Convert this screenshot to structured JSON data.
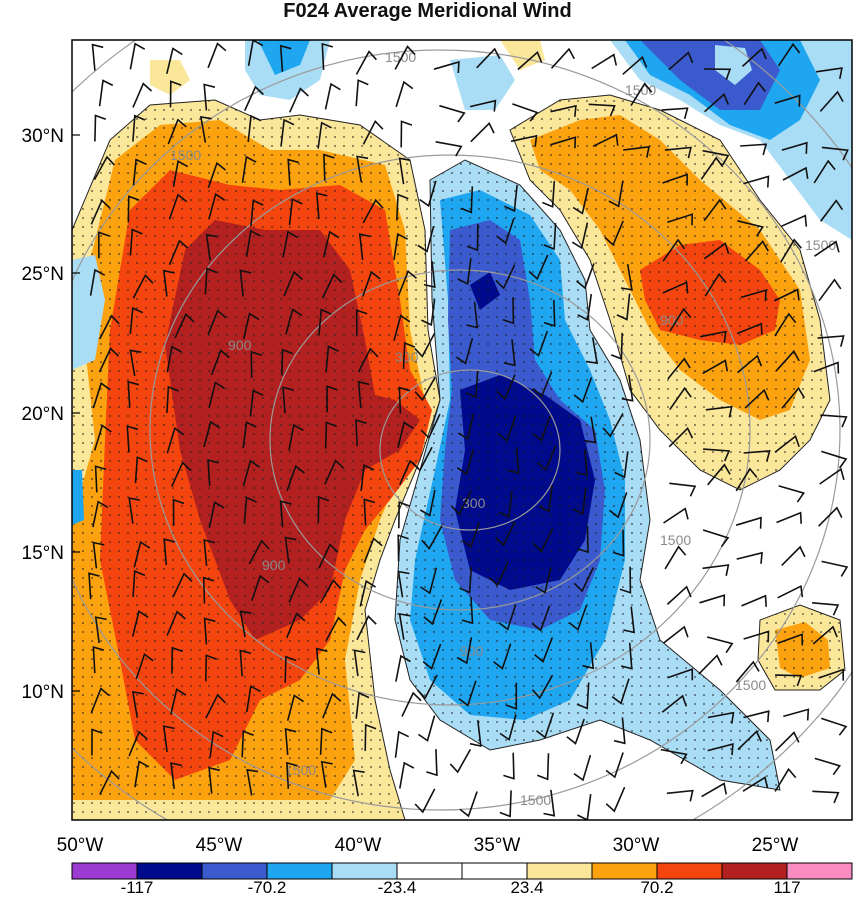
{
  "title": "F024 Average Meridional Wind",
  "lat_labels": [
    "30°N",
    "25°N",
    "20°N",
    "15°N",
    "10°N"
  ],
  "lon_labels": [
    "50°W",
    "45°W",
    "40°W",
    "35°W",
    "30°W",
    "25°W"
  ],
  "colorbar": {
    "labels": [
      "-117",
      "-70.2",
      "-23.4",
      "23.4",
      "70.2",
      "117"
    ],
    "colors": [
      "#9b3bd1",
      "#000a8c",
      "#3a5acd",
      "#1ea6f0",
      "#a9dcf5",
      "#ffffff",
      "#ffffff",
      "#fbe79a",
      "#fca20e",
      "#f5450f",
      "#b2201f",
      "#f88bbf"
    ]
  },
  "contour_labels": [
    "1500",
    "1500",
    "1500",
    "1500",
    "900",
    "900",
    "900",
    "300",
    "300",
    "900",
    "1500",
    "1500",
    "1500",
    "1500"
  ],
  "colors": {
    "dark_red": "#b2201f",
    "red": "#f5450f",
    "orange": "#fca20e",
    "light_yellow": "#fbe79a",
    "light_blue": "#a9dcf5",
    "blue": "#1ea6f0",
    "mid_blue": "#3a5acd",
    "dark_blue": "#000a8c",
    "contour": "#9a9a9a"
  }
}
